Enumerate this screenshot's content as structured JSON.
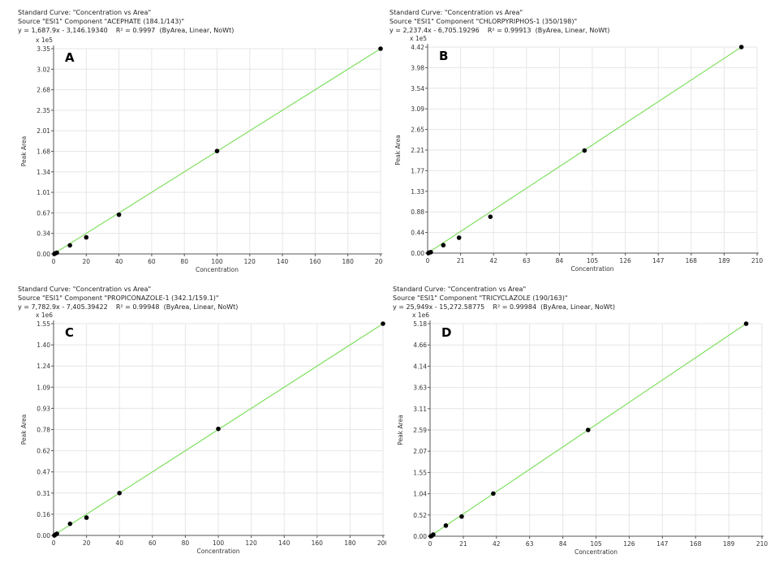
{
  "charts": [
    {
      "id": "A",
      "header": {
        "line1": "Standard Curve: \"Concentration vs Area\"",
        "line2": "Source \"ESI1\" Component \"ACEPHATE (184.1/143)\"",
        "equation": "y = 1,687.9x - 3,146.19340",
        "r2_label": "R² = 0.9997",
        "fit": "(ByArea, Linear, NoWt)"
      },
      "panel_label": "A",
      "chart_data": {
        "type": "scatter",
        "xlabel": "Concentration",
        "ylabel": "Peak Area",
        "y_multiplier": "x 1e5",
        "xlim": [
          0,
          200
        ],
        "ylim": [
          0,
          3.35
        ],
        "x_ticks": [
          "0",
          "20",
          "40",
          "60",
          "80",
          "100",
          "120",
          "140",
          "160",
          "180",
          "200"
        ],
        "y_ticks": [
          "0.00",
          "0.34",
          "0.67",
          "1.01",
          "1.34",
          "1.68",
          "2.01",
          "2.35",
          "2.68",
          "3.02",
          "3.35"
        ],
        "points": [
          {
            "x": 0.5,
            "y": 0.0
          },
          {
            "x": 1,
            "y": 0.01
          },
          {
            "x": 2,
            "y": 0.02
          },
          {
            "x": 10,
            "y": 0.14
          },
          {
            "x": 20,
            "y": 0.27
          },
          {
            "x": 40,
            "y": 0.64
          },
          {
            "x": 100,
            "y": 1.68
          },
          {
            "x": 200,
            "y": 3.35
          }
        ],
        "fit_line": {
          "x": [
            0,
            200
          ],
          "y": [
            0.0,
            3.35
          ]
        },
        "colors": {
          "line": "#80e060",
          "points": "#000000",
          "grid": "#e6e6e6"
        }
      }
    },
    {
      "id": "B",
      "header": {
        "line1": "Standard Curve: \"Concentration vs Area\"",
        "line2": "Source \"ESI1\" Component \"CHLORPYRIPHOS-1 (350/198)\"",
        "equation": "y = 2,237.4x - 6,705.19296",
        "r2_label": "R² = 0.99913",
        "fit": "(ByArea, Linear, NoWt)"
      },
      "panel_label": "B",
      "chart_data": {
        "type": "scatter",
        "xlabel": "Concentration",
        "ylabel": "Peak Area",
        "y_multiplier": "x 1e5",
        "xlim": [
          0,
          210
        ],
        "ylim": [
          0,
          4.42
        ],
        "x_ticks": [
          "0",
          "21",
          "42",
          "63",
          "84",
          "105",
          "126",
          "147",
          "168",
          "189",
          "210"
        ],
        "y_ticks": [
          "0.00",
          "0.44",
          "0.88",
          "1.33",
          "1.77",
          "2.21",
          "2.65",
          "3.09",
          "3.54",
          "3.98",
          "4.42"
        ],
        "points": [
          {
            "x": 0.5,
            "y": 0.0
          },
          {
            "x": 1,
            "y": 0.01
          },
          {
            "x": 2,
            "y": 0.02
          },
          {
            "x": 10,
            "y": 0.17
          },
          {
            "x": 20,
            "y": 0.33
          },
          {
            "x": 40,
            "y": 0.78
          },
          {
            "x": 100,
            "y": 2.2
          },
          {
            "x": 200,
            "y": 4.42
          }
        ],
        "fit_line": {
          "x": [
            0,
            200
          ],
          "y": [
            0.0,
            4.42
          ]
        },
        "colors": {
          "line": "#80e060",
          "points": "#000000",
          "grid": "#e6e6e6"
        }
      }
    },
    {
      "id": "C",
      "header": {
        "line1": "Standard Curve: \"Concentration vs Area\"",
        "line2": "Source \"ESI1\" Component \"PROPICONAZOLE-1 (342.1/159.1)\"",
        "equation": "y = 7,782.9x - 7,405.39422",
        "r2_label": "R² = 0.99948",
        "fit": "(ByArea, Linear, NoWt)"
      },
      "panel_label": "C",
      "chart_data": {
        "type": "scatter",
        "xlabel": "Concentration",
        "ylabel": "Peak Area",
        "y_multiplier": "x 1e6",
        "xlim": [
          0,
          200
        ],
        "ylim": [
          0,
          1.55
        ],
        "x_ticks": [
          "0",
          "20",
          "40",
          "60",
          "80",
          "100",
          "120",
          "140",
          "160",
          "180",
          "200"
        ],
        "y_ticks": [
          "0.00",
          "0.16",
          "0.31",
          "0.47",
          "0.62",
          "0.78",
          "0.93",
          "1.09",
          "1.24",
          "1.40",
          "1.55"
        ],
        "points": [
          {
            "x": 0.5,
            "y": 0.0
          },
          {
            "x": 1,
            "y": 0.005
          },
          {
            "x": 2,
            "y": 0.012
          },
          {
            "x": 10,
            "y": 0.085
          },
          {
            "x": 20,
            "y": 0.13
          },
          {
            "x": 40,
            "y": 0.31
          },
          {
            "x": 100,
            "y": 0.78
          },
          {
            "x": 200,
            "y": 1.55
          }
        ],
        "fit_line": {
          "x": [
            0,
            200
          ],
          "y": [
            0.0,
            1.55
          ]
        },
        "colors": {
          "line": "#80e060",
          "points": "#000000",
          "grid": "#e6e6e6"
        }
      }
    },
    {
      "id": "D",
      "header": {
        "line1": "Standard Curve: \"Concentration vs Area\"",
        "line2": "Source \"ESI1\" Component \"TRICYCLAZOLE (190/163)\"",
        "equation": "y = 25,949x - 15,272.58775",
        "r2_label": "R² = 0.99984",
        "fit": "(ByArea, Linear, NoWt)"
      },
      "panel_label": "D",
      "chart_data": {
        "type": "scatter",
        "xlabel": "Concentration",
        "ylabel": "Peak Area",
        "y_multiplier": "x 1e6",
        "xlim": [
          0,
          210
        ],
        "ylim": [
          0,
          5.18
        ],
        "x_ticks": [
          "0",
          "21",
          "42",
          "63",
          "84",
          "105",
          "126",
          "147",
          "168",
          "189",
          "210"
        ],
        "y_ticks": [
          "0.00",
          "0.52",
          "1.04",
          "1.55",
          "2.07",
          "2.59",
          "3.11",
          "3.63",
          "4.14",
          "4.66",
          "5.18"
        ],
        "points": [
          {
            "x": 0.5,
            "y": 0.0
          },
          {
            "x": 1,
            "y": 0.01
          },
          {
            "x": 2,
            "y": 0.04
          },
          {
            "x": 10,
            "y": 0.26
          },
          {
            "x": 20,
            "y": 0.48
          },
          {
            "x": 40,
            "y": 1.04
          },
          {
            "x": 100,
            "y": 2.59
          },
          {
            "x": 200,
            "y": 5.18
          }
        ],
        "fit_line": {
          "x": [
            0,
            200
          ],
          "y": [
            0.0,
            5.18
          ]
        },
        "colors": {
          "line": "#80e060",
          "points": "#000000",
          "grid": "#e6e6e6"
        }
      }
    }
  ]
}
